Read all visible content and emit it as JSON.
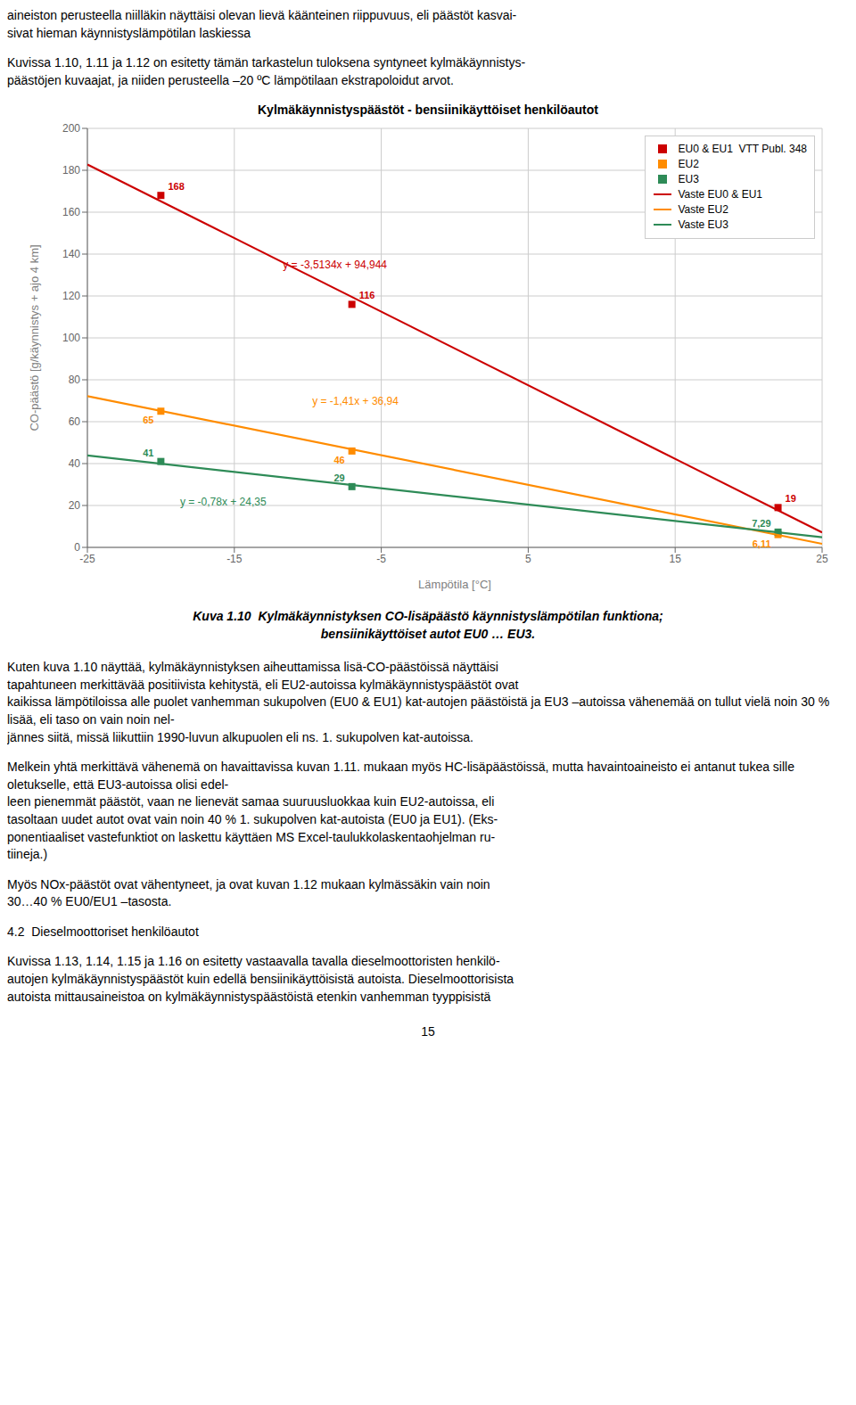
{
  "chart_data": {
    "type": "scatter",
    "title": "Kylmäkäynnistyspäästöt - bensiinikäyttöiset henkilöautot",
    "x_label": "Lämpötila [°C]",
    "y_label": "CO-päästö [g/käynnistys + ajo 4 km]",
    "xlim": [
      -25,
      25
    ],
    "ylim": [
      0,
      200
    ],
    "xticks": [
      -25,
      -15,
      -5,
      5,
      15,
      25
    ],
    "yticks": [
      0,
      20,
      40,
      60,
      80,
      100,
      120,
      140,
      160,
      180,
      200
    ],
    "grid": true,
    "legend": "upper right",
    "series": [
      {
        "name": "EU0 & EU1  VTT Publ. 348",
        "type": "scatter",
        "marker": "square",
        "color": "#CC0000",
        "x": [
          -20,
          -7,
          22
        ],
        "values": [
          168,
          116,
          19
        ],
        "value_labels": [
          "168",
          "116",
          "19"
        ],
        "data_labels": true
      },
      {
        "name": "EU2",
        "type": "scatter",
        "marker": "square",
        "color": "#FF8C00",
        "x": [
          -20,
          -7,
          22
        ],
        "values": [
          65,
          46,
          6.11
        ],
        "value_labels": [
          "65",
          "46",
          "6,11"
        ],
        "data_labels": true
      },
      {
        "name": "EU3",
        "type": "scatter",
        "marker": "square",
        "color": "#2E8B57",
        "x": [
          -20,
          -7,
          22
        ],
        "values": [
          41,
          29,
          7.29
        ],
        "value_labels": [
          "41",
          "29",
          "7,29"
        ],
        "data_labels": true
      },
      {
        "name": "Vaste EU0 & EU1",
        "type": "line",
        "line_style": "solid",
        "color": "#CC0000",
        "x": [
          -25,
          25
        ],
        "values": [
          182.779,
          7.109
        ]
      },
      {
        "name": "Vaste EU2",
        "type": "line",
        "line_style": "solid",
        "color": "#FF8C00",
        "x": [
          -25,
          25
        ],
        "values": [
          72.19,
          1.69
        ]
      },
      {
        "name": "Vaste EU3",
        "type": "line",
        "line_style": "solid",
        "color": "#2E8B57",
        "x": [
          -25,
          25
        ],
        "values": [
          43.85,
          4.85
        ]
      }
    ],
    "annotations": [
      {
        "text": "y = -3,5134x + 94,944",
        "x": -12,
        "y": 135,
        "color": "#CC0000"
      },
      {
        "text": "y = -1,41x + 36,94",
        "x": -10,
        "y": 70,
        "color": "#FF8C00"
      },
      {
        "text": "y = -0,78x + 24,35",
        "x": -19,
        "y": 22,
        "color": "#2E8B57"
      }
    ]
  },
  "text_above": [
    [
      "aineiston perusteella niilläkin näyttäisi olevan lievä käänteinen riippuvuus, eli päästöt kasvai-",
      "sivat hieman käynnistyslämpötilan laskiessa"
    ],
    [
      "Kuvissa 1.10, 1.11 ja 1.12 on esitetty tämän tarkastelun tuloksena syntyneet kylmäkäynnistys-",
      "päästöjen kuvaajat, ja niiden perusteella –20 ºC lämpötilaan ekstrapoloidut arvot."
    ]
  ],
  "caption": [
    "Kuva 1.10  Kylmäkäynnistyksen CO-lisäpäästö käynnistyslämpötilan funktiona;",
    "bensiinikäyttöiset autot EU0 … EU3."
  ],
  "text_below": [
    [
      "Kuten kuva 1.10 näyttää, kylmäkäynnistyksen aiheuttamissa lisä-CO-päästöissä näyttäisi",
      "tapahtuneen merkittävää positiivista kehitystä, eli EU2-autoissa kylmäkäynnistyspäästöt ovat",
      "kaikissa lämpötiloissa alle puolet vanhemman sukupolven (EU0 & EU1) kat-autojen päästöistä ja EU3 –autoissa vähenemää on tullut vielä noin 30 % lisää, eli taso on vain noin nel-",
      "jännes siitä, missä liikuttiin 1990-luvun alkupuolen eli ns. 1. sukupolven kat-autoissa."
    ],
    [
      "Melkein yhtä merkittävä vähenemä on havaittavissa kuvan 1.11. mukaan myös HC-lisäpäästöissä, mutta havaintoaineisto ei antanut tukea sille oletukselle, että EU3-autoissa olisi edel-",
      "leen pienemmät päästöt, vaan ne lienevät samaa suuruusluokkaa kuin EU2-autoissa, eli",
      "tasoltaan uudet autot ovat vain noin 40 % 1. sukupolven kat-autoista (EU0 ja EU1). (Eks-",
      "ponentiaaliset vastefunktiot on laskettu käyttäen MS Excel-taulukkolaskentaohjelman ru-",
      "tiineja.)"
    ],
    [
      "Myös NOx-päästöt ovat vähentyneet, ja ovat kuvan 1.12 mukaan kylmässäkin vain noin",
      "30…40 % EU0/EU1 –tasosta."
    ]
  ],
  "section_head": "4.2  Dieselmoottoriset henkilöautot",
  "text_after_head": [
    [
      "Kuvissa 1.13, 1.14, 1.15 ja 1.16 on esitetty vastaavalla tavalla dieselmoottoristen henkilö-",
      "autojen kylmäkäynnistyspäästöt kuin edellä bensiinikäyttöisistä autoista. Dieselmoottorisista",
      "autoista mittausaineistoa on kylmäkäynnistyspäästöistä etenkin vanhemman tyyppisistä"
    ]
  ],
  "page_number": "15"
}
